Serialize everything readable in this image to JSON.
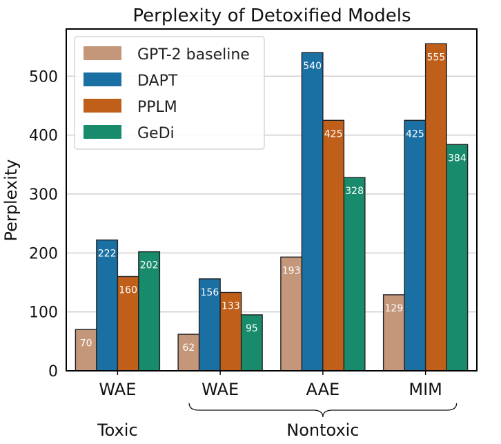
{
  "chart_data": {
    "type": "bar",
    "title": "Perplexity of Detoxified Models",
    "xlabel": "",
    "ylabel": "Perplexity",
    "ylim": [
      0,
      580
    ],
    "yticks": [
      0,
      100,
      200,
      300,
      400,
      500
    ],
    "grid": "horizontal",
    "legend_position": "top-left",
    "categories": [
      "WAE",
      "WAE",
      "AAE",
      "MIM"
    ],
    "groups": [
      {
        "label": "Toxic",
        "categories": [
          0
        ]
      },
      {
        "label": "Nontoxic",
        "categories": [
          1,
          2,
          3
        ]
      }
    ],
    "series": [
      {
        "name": "GPT-2 baseline",
        "color": "#c4967a",
        "values": [
          70,
          62,
          193,
          129
        ]
      },
      {
        "name": "DAPT",
        "color": "#1a6fa3",
        "values": [
          222,
          156,
          540,
          425
        ]
      },
      {
        "name": "PPLM",
        "color": "#bf5f1a",
        "values": [
          160,
          133,
          425,
          555
        ]
      },
      {
        "name": "GeDi",
        "color": "#178b6b",
        "values": [
          202,
          95,
          328,
          384
        ]
      }
    ]
  }
}
